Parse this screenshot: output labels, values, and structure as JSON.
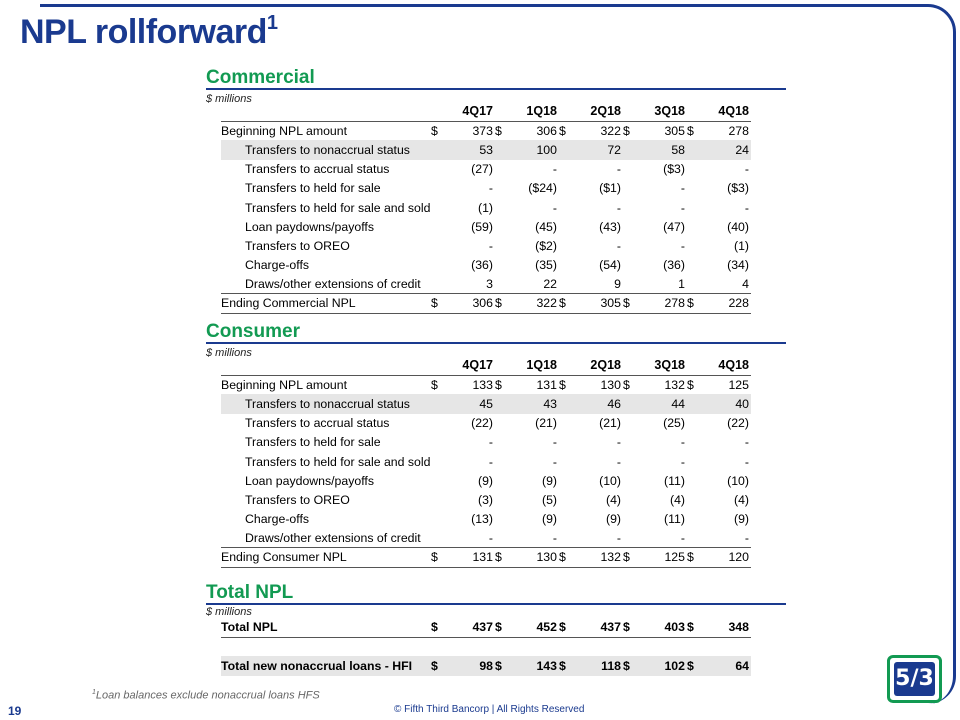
{
  "page": {
    "title": "NPL rollforward",
    "title_sup": "1",
    "footnote_sup": "1",
    "footnote": "Loan balances exclude nonaccrual loans HFS",
    "page_number": "19",
    "copyright": "© Fifth Third Bancorp | All Rights Reserved",
    "logo_text": "5/3"
  },
  "columns": [
    "4Q17",
    "1Q18",
    "2Q18",
    "3Q18",
    "4Q18"
  ],
  "commercial": {
    "title": "Commercial",
    "units": "$ millions",
    "rows": [
      {
        "label": "Beginning NPL amount",
        "values": [
          "373",
          "306",
          "322",
          "305",
          "278"
        ]
      },
      {
        "label": "Transfers to nonaccrual status",
        "values": [
          "53",
          "100",
          "72",
          "58",
          "24"
        ]
      },
      {
        "label": "Transfers to accrual status",
        "values": [
          "(27)",
          "-",
          "-",
          "($3)",
          "-"
        ]
      },
      {
        "label": "Transfers to held for sale",
        "values": [
          "-",
          "($24)",
          "($1)",
          "-",
          "($3)"
        ]
      },
      {
        "label": "Transfers to held for sale and sold",
        "values": [
          "(1)",
          "-",
          "-",
          "-",
          "-"
        ]
      },
      {
        "label": "Loan paydowns/payoffs",
        "values": [
          "(59)",
          "(45)",
          "(43)",
          "(47)",
          "(40)"
        ]
      },
      {
        "label": "Transfers to OREO",
        "values": [
          "-",
          "($2)",
          "-",
          "-",
          "(1)"
        ]
      },
      {
        "label": "Charge-offs",
        "values": [
          "(36)",
          "(35)",
          "(54)",
          "(36)",
          "(34)"
        ]
      },
      {
        "label": "Draws/other extensions of credit",
        "values": [
          "3",
          "22",
          "9",
          "1",
          "4"
        ]
      },
      {
        "label": "Ending Commercial NPL",
        "values": [
          "306",
          "322",
          "305",
          "278",
          "228"
        ]
      }
    ]
  },
  "consumer": {
    "title": "Consumer",
    "units": "$ millions",
    "rows": [
      {
        "label": "Beginning NPL amount",
        "values": [
          "133",
          "131",
          "130",
          "132",
          "125"
        ]
      },
      {
        "label": "Transfers to nonaccrual status",
        "values": [
          "45",
          "43",
          "46",
          "44",
          "40"
        ]
      },
      {
        "label": "Transfers to accrual status",
        "values": [
          "(22)",
          "(21)",
          "(21)",
          "(25)",
          "(22)"
        ]
      },
      {
        "label": "Transfers to held for sale",
        "values": [
          "-",
          "-",
          "-",
          "-",
          "-"
        ]
      },
      {
        "label": "Transfers to held for sale and sold",
        "values": [
          "-",
          "-",
          "-",
          "-",
          "-"
        ]
      },
      {
        "label": "Loan paydowns/payoffs",
        "values": [
          "(9)",
          "(9)",
          "(10)",
          "(11)",
          "(10)"
        ]
      },
      {
        "label": "Transfers to OREO",
        "values": [
          "(3)",
          "(5)",
          "(4)",
          "(4)",
          "(4)"
        ]
      },
      {
        "label": "Charge-offs",
        "values": [
          "(13)",
          "(9)",
          "(9)",
          "(11)",
          "(9)"
        ]
      },
      {
        "label": "Draws/other extensions of credit",
        "values": [
          "-",
          "-",
          "-",
          "-",
          "-"
        ]
      },
      {
        "label": "Ending Consumer NPL",
        "values": [
          "131",
          "130",
          "132",
          "125",
          "120"
        ]
      }
    ]
  },
  "total": {
    "title": "Total NPL",
    "units": "$ millions",
    "rows": [
      {
        "label": "Total NPL",
        "values": [
          "437",
          "452",
          "437",
          "403",
          "348"
        ]
      },
      {
        "label": "Total new nonaccrual loans - HFI",
        "values": [
          "98",
          "143",
          "118",
          "102",
          "64"
        ]
      }
    ]
  },
  "currency_symbol": "$"
}
